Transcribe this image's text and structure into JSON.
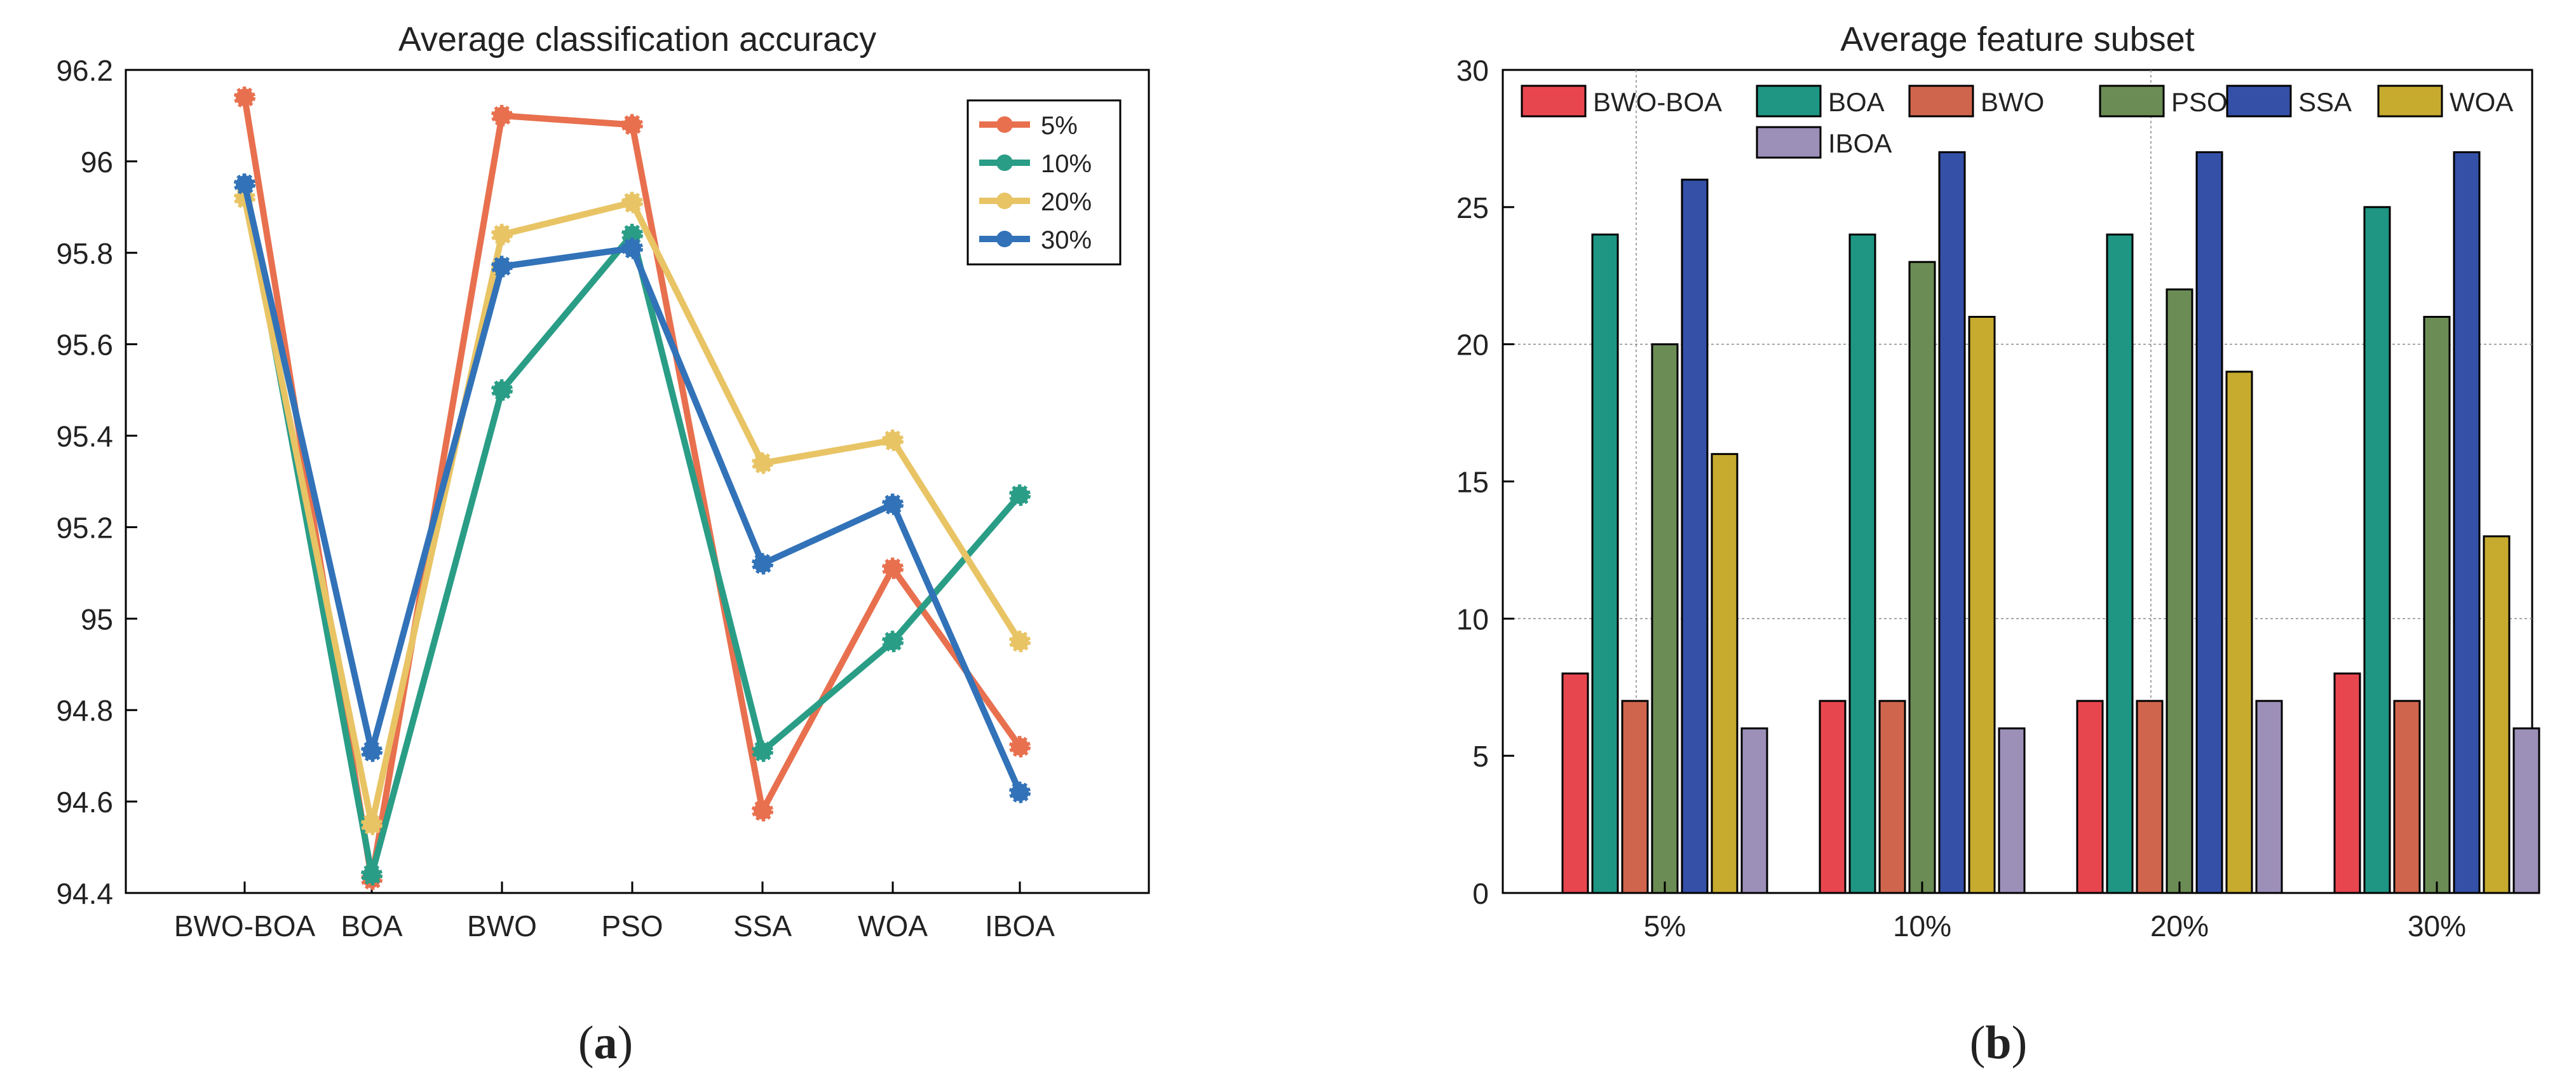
{
  "chart_data": [
    {
      "type": "line",
      "title": "Average classification accuracy",
      "panel_label": "(a)",
      "panel_letter": "a",
      "xlabel": "",
      "ylabel": "",
      "categories": [
        "BWO-BOA",
        "BOA",
        "BWO",
        "PSO",
        "SSA",
        "WOA",
        "IBOA"
      ],
      "ylim": [
        94.4,
        96.2
      ],
      "yticks": [
        "94.4",
        "94.6",
        "94.8",
        "95",
        "95.2",
        "95.4",
        "95.6",
        "95.8",
        "96",
        "96.2"
      ],
      "legend_position": "top-right",
      "series": [
        {
          "name": "5%",
          "color": "#e8704f",
          "values": [
            96.14,
            94.43,
            96.1,
            96.08,
            94.58,
            95.11,
            94.72
          ]
        },
        {
          "name": "10%",
          "color": "#2a9d86",
          "values": [
            95.95,
            94.44,
            95.5,
            95.84,
            94.71,
            94.95,
            95.27
          ]
        },
        {
          "name": "20%",
          "color": "#e8c465",
          "values": [
            95.92,
            94.55,
            95.84,
            95.91,
            95.34,
            95.39,
            94.95
          ]
        },
        {
          "name": "30%",
          "color": "#3272b8",
          "values": [
            95.95,
            94.71,
            95.77,
            95.81,
            95.12,
            95.25,
            94.62
          ]
        }
      ]
    },
    {
      "type": "bar",
      "title": "Average feature subset",
      "panel_label": "(b)",
      "panel_letter": "b",
      "xlabel": "",
      "ylabel": "",
      "categories": [
        "5%",
        "10%",
        "20%",
        "30%"
      ],
      "ylim": [
        0,
        30
      ],
      "yticks": [
        "0",
        "5",
        "10",
        "15",
        "20",
        "25",
        "30"
      ],
      "legend_position": "top",
      "series": [
        {
          "name": "BWO-BOA",
          "color": "#e8464f",
          "values": [
            8,
            7,
            7,
            8
          ]
        },
        {
          "name": "BOA",
          "color": "#1e9683",
          "values": [
            24,
            24,
            24,
            25
          ]
        },
        {
          "name": "BWO",
          "color": "#cf654d",
          "values": [
            7,
            7,
            7,
            7
          ]
        },
        {
          "name": "PSO",
          "color": "#6c8c55",
          "values": [
            20,
            23,
            22,
            21
          ]
        },
        {
          "name": "SSA",
          "color": "#3451a7",
          "values": [
            26,
            27,
            27,
            27
          ]
        },
        {
          "name": "WOA",
          "color": "#c7ab2f",
          "values": [
            16,
            21,
            19,
            13
          ]
        },
        {
          "name": "IBOA",
          "color": "#9c8fb8",
          "values": [
            6,
            6,
            7,
            6
          ]
        }
      ]
    }
  ]
}
